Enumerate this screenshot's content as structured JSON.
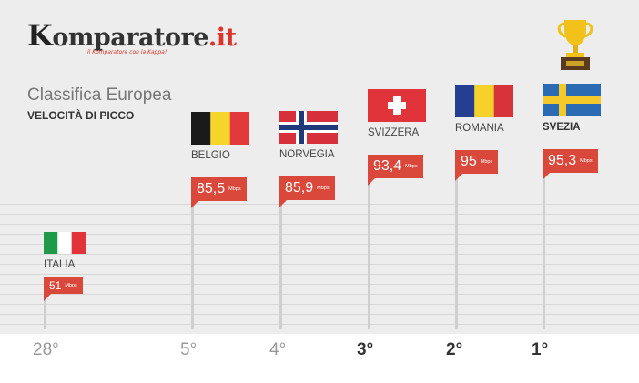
{
  "brand": {
    "name_first": "K",
    "name_rest": "omparatore",
    "tld": ".it",
    "tagline": "il Komparatore con la Kappa!"
  },
  "colors": {
    "accent": "#d9483b",
    "background": "#ededed",
    "pole": "#cfcfcf"
  },
  "chart_data": {
    "type": "bar",
    "title": "Classifica Europea",
    "subtitle": "VELOCITÀ DI PICCO",
    "categories": [
      "ITALIA",
      "BELGIO",
      "NORVEGIA",
      "SVIZZERA",
      "ROMANIA",
      "SVEZIA"
    ],
    "values": [
      51,
      85.5,
      85.9,
      93.4,
      95,
      95.3
    ],
    "value_labels": [
      "51",
      "85,5",
      "85,9",
      "93,4",
      "95",
      "95,3"
    ],
    "unit": "Mbps",
    "unit_labels": [
      "Mbps",
      "Mbps",
      "Mbps",
      "Mbps",
      "Mbps",
      "Mbps"
    ],
    "ranks": [
      "28°",
      "5°",
      "4°",
      "3°",
      "2°",
      "1°"
    ],
    "flags": [
      "italy-flag",
      "belgium-flag",
      "norway-flag",
      "switzerland-flag",
      "romania-flag",
      "sweden-flag"
    ],
    "grid": true,
    "winner_icon": "trophy-icon"
  }
}
